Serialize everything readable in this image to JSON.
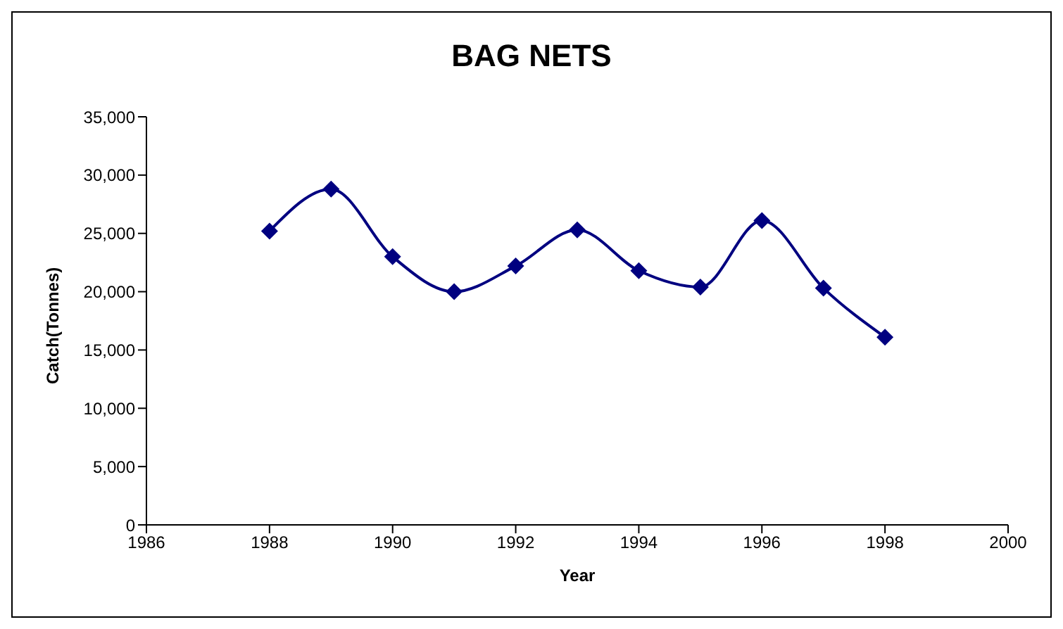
{
  "chart_data": {
    "type": "line",
    "title": "BAG NETS",
    "xlabel": "Year",
    "ylabel": "Catch(Tonnes)",
    "x": [
      1988,
      1989,
      1990,
      1991,
      1992,
      1993,
      1994,
      1995,
      1996,
      1997,
      1998
    ],
    "series": [
      {
        "color": "#000080",
        "values": [
          25200,
          28800,
          23000,
          20000,
          22200,
          25300,
          21800,
          20400,
          26100,
          20300,
          16100
        ]
      }
    ],
    "xlim": [
      1986,
      2000
    ],
    "xticks": [
      1986,
      1988,
      1990,
      1992,
      1994,
      1996,
      1998,
      2000
    ],
    "ylim": [
      0,
      35000
    ],
    "yticks": [
      {
        "value": 0,
        "label": "0"
      },
      {
        "value": 5000,
        "label": "5,000"
      },
      {
        "value": 10000,
        "label": "10,000"
      },
      {
        "value": 15000,
        "label": "15,000"
      },
      {
        "value": 20000,
        "label": "20,000"
      },
      {
        "value": 25000,
        "label": "25,000"
      },
      {
        "value": 30000,
        "label": "30,000"
      },
      {
        "value": 35000,
        "label": "35,000"
      }
    ],
    "marker": "diamond",
    "grid": false,
    "legend": false
  }
}
